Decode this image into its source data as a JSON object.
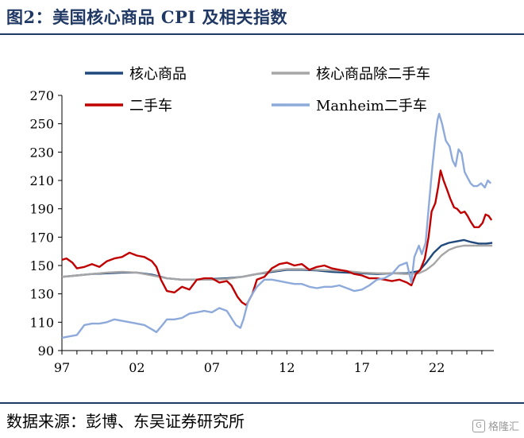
{
  "header": {
    "title": "图2：美国核心商品 CPI 及相关指数"
  },
  "footer": {
    "source": "数据来源：彭博、东吴证券研究所",
    "watermark": "格隆汇"
  },
  "colors": {
    "accent": "#1f3864"
  },
  "chart_data": {
    "type": "line",
    "title": "",
    "xlabel": "",
    "ylabel": "",
    "x_ticks": [
      "97",
      "02",
      "07",
      "12",
      "17",
      "22"
    ],
    "y_ticks": [
      90,
      110,
      130,
      150,
      170,
      190,
      210,
      230,
      250,
      270
    ],
    "xlim": [
      1997.0,
      2025.8
    ],
    "ylim": [
      90,
      270
    ],
    "grid": false,
    "legend_position": "top",
    "series": [
      {
        "name": "核心商品",
        "color": "#1f497d",
        "points": [
          [
            1997.0,
            142
          ],
          [
            1998.0,
            143
          ],
          [
            1999.0,
            144
          ],
          [
            2000.0,
            144.5
          ],
          [
            2001.0,
            145
          ],
          [
            2002.0,
            145
          ],
          [
            2003.0,
            143.5
          ],
          [
            2004.0,
            141
          ],
          [
            2005.0,
            140
          ],
          [
            2006.0,
            140
          ],
          [
            2007.0,
            140.5
          ],
          [
            2008.0,
            141
          ],
          [
            2009.0,
            142
          ],
          [
            2010.0,
            144
          ],
          [
            2011.0,
            145.5
          ],
          [
            2012.0,
            147
          ],
          [
            2013.0,
            147
          ],
          [
            2014.0,
            146.5
          ],
          [
            2015.0,
            145.5
          ],
          [
            2016.0,
            145
          ],
          [
            2017.0,
            144.5
          ],
          [
            2018.0,
            144
          ],
          [
            2019.0,
            144.5
          ],
          [
            2020.0,
            144.5
          ],
          [
            2020.8,
            146
          ],
          [
            2021.3,
            152
          ],
          [
            2021.8,
            159
          ],
          [
            2022.3,
            164
          ],
          [
            2022.8,
            166
          ],
          [
            2023.3,
            167
          ],
          [
            2023.8,
            168
          ],
          [
            2024.3,
            166.5
          ],
          [
            2024.8,
            165.5
          ],
          [
            2025.3,
            165.5
          ],
          [
            2025.7,
            166
          ]
        ]
      },
      {
        "name": "核心商品除二手车",
        "color": "#a6a6a6",
        "points": [
          [
            1997.0,
            142
          ],
          [
            1998.0,
            143
          ],
          [
            1999.0,
            144
          ],
          [
            2000.0,
            145
          ],
          [
            2001.0,
            145.5
          ],
          [
            2002.0,
            145
          ],
          [
            2003.0,
            143
          ],
          [
            2004.0,
            141
          ],
          [
            2005.0,
            140
          ],
          [
            2006.0,
            140
          ],
          [
            2007.0,
            140
          ],
          [
            2008.0,
            140.5
          ],
          [
            2009.0,
            142
          ],
          [
            2010.0,
            144
          ],
          [
            2011.0,
            146
          ],
          [
            2012.0,
            147.5
          ],
          [
            2013.0,
            147.5
          ],
          [
            2014.0,
            147
          ],
          [
            2015.0,
            146.5
          ],
          [
            2016.0,
            146
          ],
          [
            2017.0,
            145
          ],
          [
            2018.0,
            144.5
          ],
          [
            2019.0,
            144.5
          ],
          [
            2020.0,
            144
          ],
          [
            2020.8,
            144.5
          ],
          [
            2021.3,
            147
          ],
          [
            2021.8,
            151
          ],
          [
            2022.3,
            157
          ],
          [
            2022.8,
            161
          ],
          [
            2023.3,
            163
          ],
          [
            2023.8,
            164
          ],
          [
            2024.3,
            164
          ],
          [
            2024.8,
            164
          ],
          [
            2025.3,
            164
          ],
          [
            2025.7,
            164
          ]
        ]
      },
      {
        "name": "二手车",
        "color": "#c00000",
        "points": [
          [
            1997.0,
            154
          ],
          [
            1997.3,
            155
          ],
          [
            1997.7,
            152
          ],
          [
            1998.0,
            148
          ],
          [
            1998.5,
            149
          ],
          [
            1999.0,
            151
          ],
          [
            1999.5,
            149
          ],
          [
            2000.0,
            153
          ],
          [
            2000.5,
            155
          ],
          [
            2001.0,
            156
          ],
          [
            2001.5,
            159
          ],
          [
            2002.0,
            157
          ],
          [
            2002.5,
            156
          ],
          [
            2003.0,
            153
          ],
          [
            2003.3,
            149
          ],
          [
            2003.6,
            140
          ],
          [
            2004.0,
            132
          ],
          [
            2004.5,
            131
          ],
          [
            2005.0,
            135
          ],
          [
            2005.5,
            133
          ],
          [
            2006.0,
            140
          ],
          [
            2006.5,
            141
          ],
          [
            2007.0,
            141
          ],
          [
            2007.5,
            138
          ],
          [
            2008.0,
            139
          ],
          [
            2008.3,
            136
          ],
          [
            2008.7,
            128
          ],
          [
            2009.0,
            124
          ],
          [
            2009.3,
            122
          ],
          [
            2009.7,
            130
          ],
          [
            2010.0,
            140
          ],
          [
            2010.5,
            142
          ],
          [
            2011.0,
            148
          ],
          [
            2011.5,
            151
          ],
          [
            2012.0,
            152
          ],
          [
            2012.5,
            150
          ],
          [
            2013.0,
            151
          ],
          [
            2013.5,
            147
          ],
          [
            2014.0,
            149
          ],
          [
            2014.5,
            150
          ],
          [
            2015.0,
            148
          ],
          [
            2015.5,
            147
          ],
          [
            2016.0,
            146
          ],
          [
            2016.5,
            144
          ],
          [
            2017.0,
            143
          ],
          [
            2017.5,
            141
          ],
          [
            2018.0,
            141
          ],
          [
            2018.5,
            140
          ],
          [
            2019.0,
            139
          ],
          [
            2019.5,
            140
          ],
          [
            2020.0,
            138
          ],
          [
            2020.3,
            136
          ],
          [
            2020.6,
            144
          ],
          [
            2020.9,
            147
          ],
          [
            2021.2,
            155
          ],
          [
            2021.45,
            170
          ],
          [
            2021.65,
            188
          ],
          [
            2021.9,
            194
          ],
          [
            2022.1,
            206
          ],
          [
            2022.25,
            217
          ],
          [
            2022.45,
            210
          ],
          [
            2022.7,
            203
          ],
          [
            2022.9,
            197
          ],
          [
            2023.15,
            191
          ],
          [
            2023.35,
            190
          ],
          [
            2023.6,
            187
          ],
          [
            2023.85,
            188
          ],
          [
            2024.05,
            185
          ],
          [
            2024.25,
            181
          ],
          [
            2024.5,
            177
          ],
          [
            2024.8,
            177
          ],
          [
            2025.05,
            180
          ],
          [
            2025.25,
            186
          ],
          [
            2025.45,
            185
          ],
          [
            2025.65,
            182
          ]
        ]
      },
      {
        "name": "Manheim二手车",
        "color": "#8eaadb",
        "points": [
          [
            1997.0,
            99
          ],
          [
            1997.5,
            100
          ],
          [
            1998.0,
            101
          ],
          [
            1998.5,
            108
          ],
          [
            1999.0,
            109
          ],
          [
            1999.5,
            109
          ],
          [
            2000.0,
            110
          ],
          [
            2000.5,
            112
          ],
          [
            2001.0,
            111
          ],
          [
            2001.5,
            110
          ],
          [
            2002.0,
            109
          ],
          [
            2002.5,
            108
          ],
          [
            2003.0,
            105
          ],
          [
            2003.3,
            103
          ],
          [
            2003.7,
            108
          ],
          [
            2004.0,
            112
          ],
          [
            2004.5,
            112
          ],
          [
            2005.0,
            113
          ],
          [
            2005.5,
            116
          ],
          [
            2006.0,
            117
          ],
          [
            2006.5,
            118
          ],
          [
            2007.0,
            117
          ],
          [
            2007.5,
            120
          ],
          [
            2008.0,
            118
          ],
          [
            2008.3,
            113
          ],
          [
            2008.6,
            108
          ],
          [
            2008.9,
            106
          ],
          [
            2009.1,
            112
          ],
          [
            2009.4,
            124
          ],
          [
            2009.7,
            130
          ],
          [
            2010.0,
            135
          ],
          [
            2010.5,
            140
          ],
          [
            2011.0,
            140
          ],
          [
            2011.5,
            139
          ],
          [
            2012.0,
            138
          ],
          [
            2012.5,
            137
          ],
          [
            2013.0,
            137
          ],
          [
            2013.5,
            135
          ],
          [
            2014.0,
            134
          ],
          [
            2014.5,
            135
          ],
          [
            2015.0,
            135
          ],
          [
            2015.5,
            136
          ],
          [
            2016.0,
            134
          ],
          [
            2016.5,
            132
          ],
          [
            2017.0,
            133
          ],
          [
            2017.5,
            136
          ],
          [
            2018.0,
            140
          ],
          [
            2018.5,
            141
          ],
          [
            2019.0,
            144
          ],
          [
            2019.5,
            150
          ],
          [
            2020.0,
            152
          ],
          [
            2020.3,
            138
          ],
          [
            2020.5,
            156
          ],
          [
            2020.8,
            164
          ],
          [
            2021.0,
            158
          ],
          [
            2021.25,
            166
          ],
          [
            2021.45,
            190
          ],
          [
            2021.7,
            220
          ],
          [
            2021.9,
            240
          ],
          [
            2022.05,
            253
          ],
          [
            2022.15,
            257
          ],
          [
            2022.35,
            250
          ],
          [
            2022.6,
            238
          ],
          [
            2022.85,
            234
          ],
          [
            2023.05,
            224
          ],
          [
            2023.25,
            220
          ],
          [
            2023.45,
            232
          ],
          [
            2023.65,
            229
          ],
          [
            2023.85,
            216
          ],
          [
            2024.05,
            212
          ],
          [
            2024.25,
            208
          ],
          [
            2024.45,
            206
          ],
          [
            2024.7,
            206
          ],
          [
            2024.95,
            208
          ],
          [
            2025.2,
            205
          ],
          [
            2025.4,
            210
          ],
          [
            2025.6,
            208
          ]
        ]
      }
    ]
  }
}
